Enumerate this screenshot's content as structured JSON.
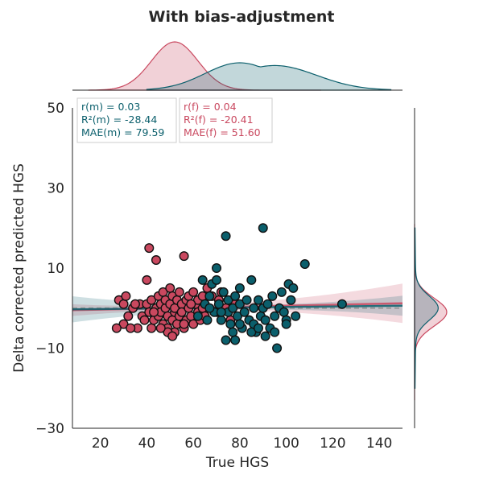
{
  "chart_data": {
    "type": "scatter",
    "title": "With bias-adjustment",
    "xlabel": "True HGS",
    "ylabel": "Delta corrected predicted HGS",
    "xlim": [
      8,
      150
    ],
    "ylim": [
      -30,
      50
    ],
    "xticks": [
      "20",
      "40",
      "60",
      "80",
      "100",
      "120",
      "140"
    ],
    "yticks": [
      "−30",
      "−10",
      "10",
      "30",
      "50"
    ],
    "grid": false,
    "colors": {
      "male": "#0b5f6c",
      "female": "#c9485f"
    },
    "stats": {
      "male": [
        "r(m) = 0.03",
        "R²(m) = -28.44",
        "MAE(m) = 79.59"
      ],
      "female": [
        "r(f) = 0.04",
        "R²(f) = -20.41",
        "MAE(f) = 51.60"
      ]
    },
    "series": [
      {
        "key": "female",
        "color": "#c9485f",
        "fit": {
          "x": [
            8,
            150
          ],
          "y": [
            -0.5,
            1.2
          ]
        },
        "kde_x": {
          "mean": 52,
          "sd": 10,
          "range": [
            15,
            115
          ]
        },
        "kde_y": {
          "mean": -1,
          "sd": 3.5
        },
        "points": [
          [
            28,
            2
          ],
          [
            30,
            -4
          ],
          [
            30,
            1
          ],
          [
            31,
            3
          ],
          [
            32,
            -2
          ],
          [
            34,
            0
          ],
          [
            36,
            -5
          ],
          [
            37,
            1
          ],
          [
            38,
            -2
          ],
          [
            39,
            -3
          ],
          [
            40,
            1
          ],
          [
            40,
            7
          ],
          [
            41,
            15
          ],
          [
            41,
            -1
          ],
          [
            42,
            -5
          ],
          [
            42,
            2
          ],
          [
            43,
            -3
          ],
          [
            44,
            0
          ],
          [
            44,
            12
          ],
          [
            45,
            3
          ],
          [
            45,
            -2
          ],
          [
            46,
            1
          ],
          [
            46,
            -1
          ],
          [
            47,
            -4
          ],
          [
            47,
            4
          ],
          [
            48,
            0
          ],
          [
            48,
            2
          ],
          [
            49,
            -5
          ],
          [
            49,
            -2
          ],
          [
            50,
            5
          ],
          [
            50,
            1
          ],
          [
            51,
            -3
          ],
          [
            51,
            3
          ],
          [
            52,
            -1
          ],
          [
            52,
            -6
          ],
          [
            52,
            0
          ],
          [
            53,
            2
          ],
          [
            53,
            -4
          ],
          [
            54,
            4
          ],
          [
            54,
            -2
          ],
          [
            55,
            1
          ],
          [
            55,
            -1
          ],
          [
            56,
            13
          ],
          [
            56,
            -5
          ],
          [
            57,
            2
          ],
          [
            57,
            -3
          ],
          [
            58,
            0
          ],
          [
            58,
            3
          ],
          [
            59,
            -2
          ],
          [
            60,
            -4
          ],
          [
            60,
            4
          ],
          [
            61,
            1
          ],
          [
            62,
            -1
          ],
          [
            62,
            2
          ],
          [
            63,
            -3
          ],
          [
            64,
            0
          ],
          [
            65,
            -2
          ],
          [
            66,
            5
          ],
          [
            68,
            3
          ],
          [
            70,
            -1
          ],
          [
            71,
            2
          ],
          [
            72,
            4
          ],
          [
            74,
            0
          ],
          [
            76,
            -3
          ],
          [
            78,
            1
          ],
          [
            27,
            -5
          ],
          [
            33,
            -5
          ],
          [
            35,
            1
          ],
          [
            43,
            -1
          ],
          [
            49,
            -6
          ],
          [
            51,
            -7
          ],
          [
            56,
            -4
          ],
          [
            59,
            1
          ],
          [
            64,
            3
          ],
          [
            46,
            -5
          ]
        ]
      },
      {
        "key": "male",
        "color": "#0b5f6c",
        "fit": {
          "x": [
            8,
            150
          ],
          "y": [
            -0.3,
            0.6
          ]
        },
        "kde_x": {
          "mean": 80,
          "sd": 15,
          "range": [
            40,
            145
          ]
        },
        "kde_y": {
          "mean": 0,
          "sd": 3
        },
        "points": [
          [
            62,
            -2
          ],
          [
            64,
            7
          ],
          [
            65,
            1
          ],
          [
            66,
            -3
          ],
          [
            67,
            3
          ],
          [
            68,
            6
          ],
          [
            69,
            -1
          ],
          [
            70,
            7
          ],
          [
            70,
            10
          ],
          [
            71,
            1
          ],
          [
            72,
            -3
          ],
          [
            73,
            4
          ],
          [
            74,
            18
          ],
          [
            75,
            -1
          ],
          [
            75,
            2
          ],
          [
            76,
            -4
          ],
          [
            77,
            0
          ],
          [
            77,
            -6
          ],
          [
            78,
            3
          ],
          [
            79,
            -2
          ],
          [
            80,
            1
          ],
          [
            80,
            5
          ],
          [
            81,
            -5
          ],
          [
            82,
            -1
          ],
          [
            83,
            2
          ],
          [
            84,
            -3
          ],
          [
            85,
            7
          ],
          [
            86,
            0
          ],
          [
            86,
            -4
          ],
          [
            87,
            -6
          ],
          [
            88,
            2
          ],
          [
            89,
            -2
          ],
          [
            90,
            20
          ],
          [
            90,
            0
          ],
          [
            91,
            -3
          ],
          [
            92,
            1
          ],
          [
            93,
            -5
          ],
          [
            94,
            3
          ],
          [
            95,
            -2
          ],
          [
            96,
            -10
          ],
          [
            97,
            0
          ],
          [
            98,
            4
          ],
          [
            99,
            -1
          ],
          [
            100,
            -3
          ],
          [
            101,
            6
          ],
          [
            102,
            2
          ],
          [
            103,
            5
          ],
          [
            104,
            -2
          ],
          [
            108,
            11
          ],
          [
            124,
            1
          ],
          [
            74,
            -8
          ],
          [
            78,
            -8
          ],
          [
            85,
            -6
          ],
          [
            91,
            -7
          ],
          [
            100,
            -4
          ],
          [
            67,
            0
          ],
          [
            72,
            -1
          ],
          [
            80,
            -4
          ],
          [
            88,
            -5
          ],
          [
            95,
            -6
          ]
        ]
      }
    ]
  }
}
